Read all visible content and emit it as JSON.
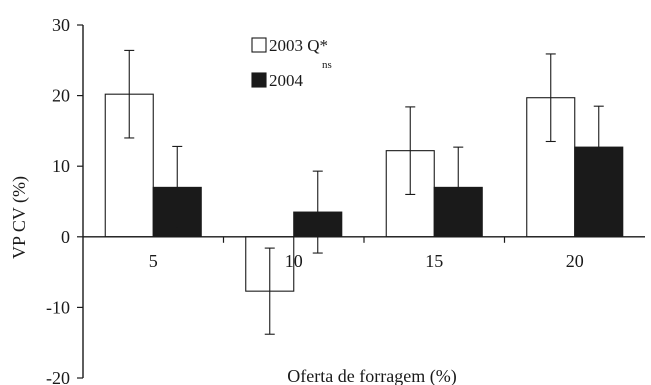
{
  "chart_data": {
    "type": "bar",
    "categories": [
      "5",
      "10",
      "15",
      "20"
    ],
    "series": [
      {
        "name": "2003 Q*",
        "superscript": "",
        "values": [
          20.2,
          -7.7,
          12.2,
          19.7
        ],
        "errors": [
          6.2,
          6.1,
          6.2,
          6.2
        ],
        "color": "#ffffff"
      },
      {
        "name": "2004",
        "superscript": "ns",
        "values": [
          7.0,
          3.5,
          7.0,
          12.7
        ],
        "errors": [
          5.8,
          5.8,
          5.7,
          5.8
        ],
        "color": "#1a1a1a"
      }
    ],
    "xlabel": "Oferta de forragem (%)",
    "ylabel": "VP CV (%)",
    "ylim": [
      -20,
      30
    ],
    "yticks": [
      -20,
      -10,
      0,
      10,
      20,
      30
    ],
    "grid": false,
    "legend": "top-center"
  }
}
